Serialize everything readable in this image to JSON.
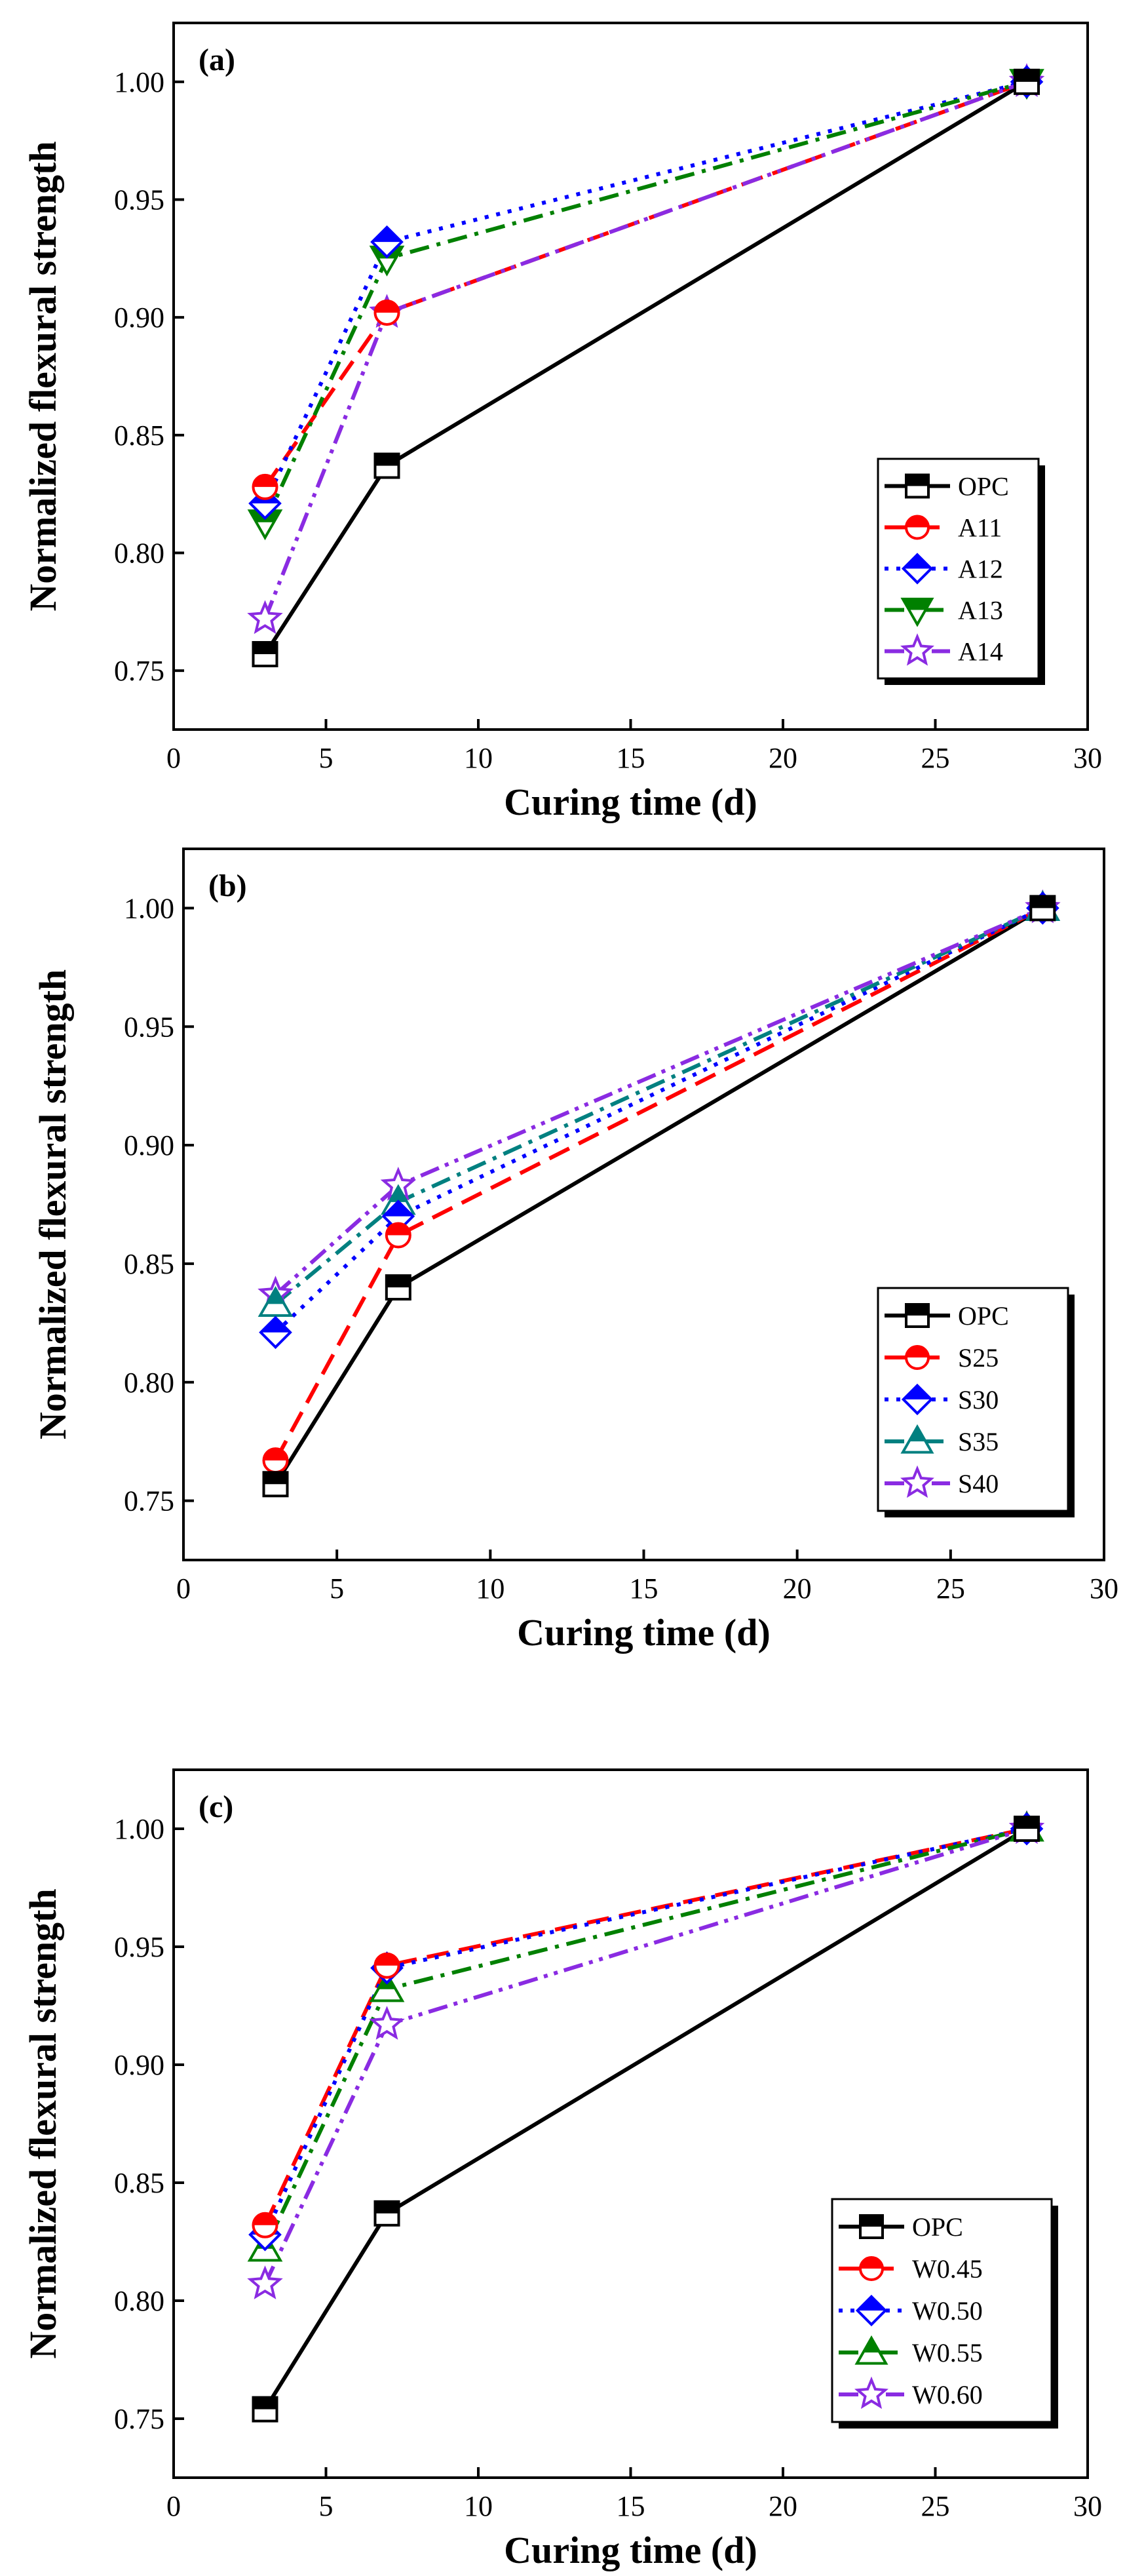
{
  "chart_data": [
    {
      "type": "line",
      "panel_label": "(a)",
      "xlabel": "Curing time (d)",
      "ylabel": "Normalized flexural strength",
      "xlim": [
        0,
        30
      ],
      "ylim": [
        0.725,
        1.025
      ],
      "xticks": [
        0,
        5,
        10,
        15,
        20,
        25,
        30
      ],
      "yticks": [
        0.75,
        0.8,
        0.85,
        0.9,
        0.95,
        1.0
      ],
      "xtick_labels": [
        "0",
        "5",
        "10",
        "15",
        "20",
        "25",
        "30"
      ],
      "ytick_labels": [
        "0.75",
        "0.80",
        "0.85",
        "0.90",
        "0.95",
        "1.00"
      ],
      "legend_position": "lower-right",
      "x": [
        3,
        7,
        28
      ],
      "series": [
        {
          "name": "OPC",
          "values": [
            0.757,
            0.837,
            1.0
          ],
          "color": "#000000",
          "dash": "solid",
          "marker": "square"
        },
        {
          "name": "A11",
          "values": [
            0.828,
            0.902,
            1.0
          ],
          "color": "#ff0000",
          "dash": "dash",
          "marker": "circle"
        },
        {
          "name": "A12",
          "values": [
            0.821,
            0.932,
            1.0
          ],
          "color": "#0000ff",
          "dash": "dot",
          "marker": "diamond"
        },
        {
          "name": "A13",
          "values": [
            0.813,
            0.925,
            1.0
          ],
          "color": "#008000",
          "dash": "dashdot",
          "marker": "triangle-down"
        },
        {
          "name": "A14",
          "values": [
            0.772,
            0.902,
            1.0
          ],
          "color": "#8a2be2",
          "dash": "dashdotdot",
          "marker": "star"
        }
      ]
    },
    {
      "type": "line",
      "panel_label": "(b)",
      "xlabel": "Curing time (d)",
      "ylabel": "Normalized flexural strength",
      "xlim": [
        0,
        30
      ],
      "ylim": [
        0.725,
        1.025
      ],
      "xticks": [
        0,
        5,
        10,
        15,
        20,
        25,
        30
      ],
      "yticks": [
        0.75,
        0.8,
        0.85,
        0.9,
        0.95,
        1.0
      ],
      "xtick_labels": [
        "0",
        "5",
        "10",
        "15",
        "20",
        "25",
        "30"
      ],
      "ytick_labels": [
        "0.75",
        "0.80",
        "0.85",
        "0.90",
        "0.95",
        "1.00"
      ],
      "legend_position": "lower-right",
      "x": [
        3,
        7,
        28
      ],
      "series": [
        {
          "name": "OPC",
          "values": [
            0.757,
            0.84,
            1.0
          ],
          "color": "#000000",
          "dash": "solid",
          "marker": "square"
        },
        {
          "name": "S25",
          "values": [
            0.767,
            0.862,
            1.0
          ],
          "color": "#ff0000",
          "dash": "dash",
          "marker": "circle"
        },
        {
          "name": "S30",
          "values": [
            0.821,
            0.87,
            1.0
          ],
          "color": "#0000ff",
          "dash": "dot",
          "marker": "diamond"
        },
        {
          "name": "S35",
          "values": [
            0.833,
            0.876,
            1.0
          ],
          "color": "#008080",
          "dash": "dashdot",
          "marker": "triangle-up"
        },
        {
          "name": "S40",
          "values": [
            0.837,
            0.883,
            1.0
          ],
          "color": "#8a2be2",
          "dash": "dashdotdot",
          "marker": "star"
        }
      ]
    },
    {
      "type": "line",
      "panel_label": "(c)",
      "xlabel": "Curing time (d)",
      "ylabel": "Normalized flexural strength",
      "xlim": [
        0,
        30
      ],
      "ylim": [
        0.725,
        1.025
      ],
      "xticks": [
        0,
        5,
        10,
        15,
        20,
        25,
        30
      ],
      "yticks": [
        0.75,
        0.8,
        0.85,
        0.9,
        0.95,
        1.0
      ],
      "xtick_labels": [
        "0",
        "5",
        "10",
        "15",
        "20",
        "25",
        "30"
      ],
      "ytick_labels": [
        "0.75",
        "0.80",
        "0.85",
        "0.90",
        "0.95",
        "1.00"
      ],
      "legend_position": "lower-right",
      "x": [
        3,
        7,
        28
      ],
      "series": [
        {
          "name": "OPC",
          "values": [
            0.754,
            0.837,
            1.0
          ],
          "color": "#000000",
          "dash": "solid",
          "marker": "square"
        },
        {
          "name": "W0.45",
          "values": [
            0.832,
            0.942,
            1.0
          ],
          "color": "#ff0000",
          "dash": "dash",
          "marker": "circle"
        },
        {
          "name": "W0.50",
          "values": [
            0.828,
            0.941,
            1.0
          ],
          "color": "#0000ff",
          "dash": "dot",
          "marker": "diamond"
        },
        {
          "name": "W0.55",
          "values": [
            0.822,
            0.932,
            1.0
          ],
          "color": "#008000",
          "dash": "dashdot",
          "marker": "triangle-up"
        },
        {
          "name": "W0.60",
          "values": [
            0.807,
            0.917,
            1.0
          ],
          "color": "#8a2be2",
          "dash": "dashdotdot",
          "marker": "star"
        }
      ]
    }
  ]
}
